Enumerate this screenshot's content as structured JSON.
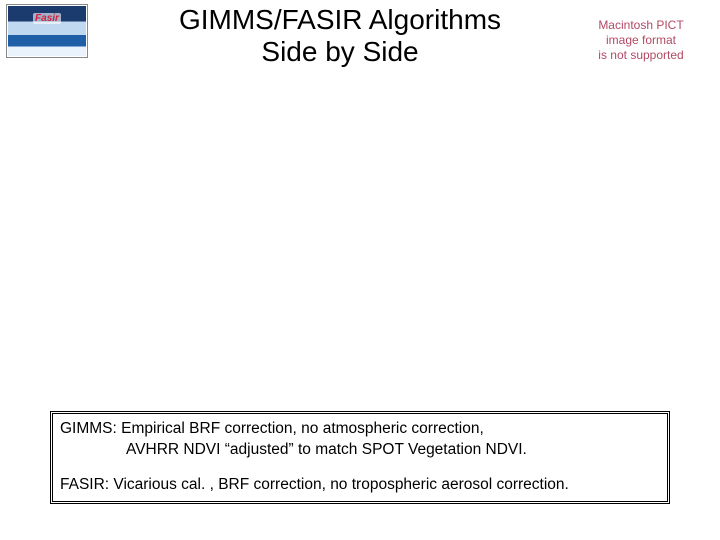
{
  "logo": {
    "label": "Fasir"
  },
  "title": {
    "line1": "GIMMS/FASIR Algorithms",
    "line2": "Side by Side"
  },
  "mac_notice": {
    "line1": "Macintosh PICT",
    "line2": "image format",
    "line3": "is not supported",
    "text_color": "#b24a66"
  },
  "info_box": {
    "gimms_line1": "GIMMS: Empirical BRF correction, no atmospheric correction,",
    "gimms_line2": "AVHRR NDVI “adjusted” to match SPOT Vegetation NDVI.",
    "fasir_line": "FASIR:  Vicarious cal. , BRF correction, no tropospheric aerosol correction."
  }
}
